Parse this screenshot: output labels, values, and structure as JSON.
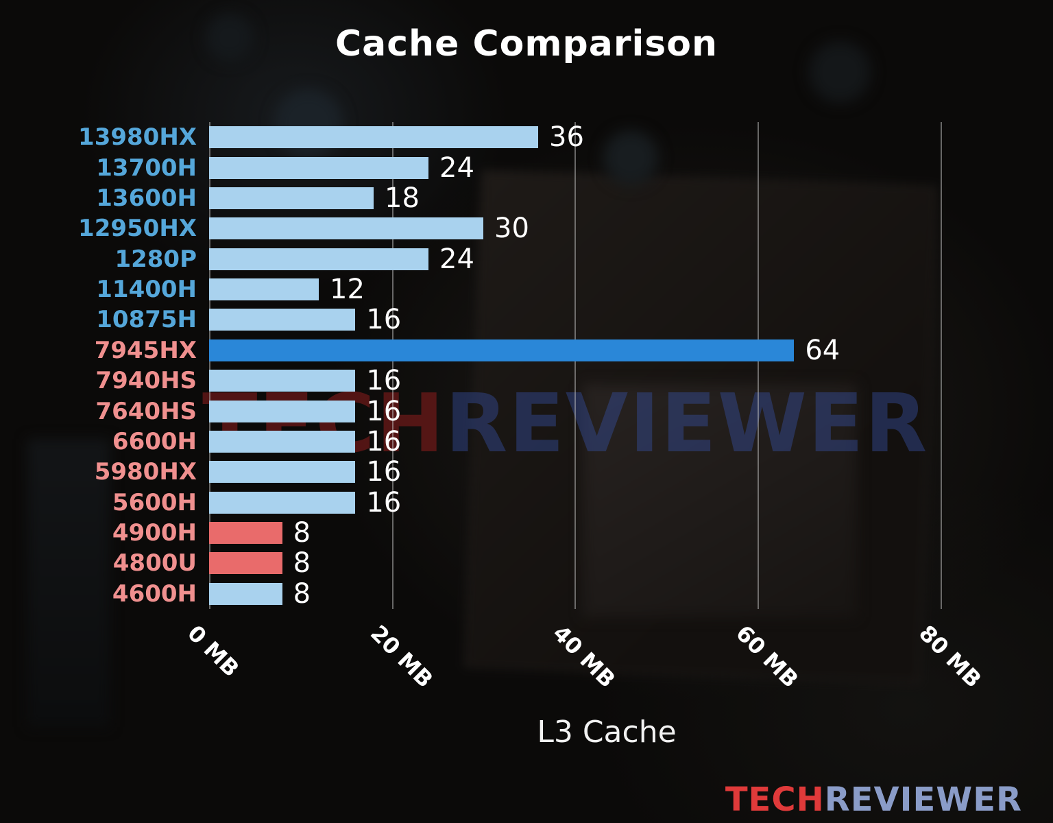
{
  "watermark": {
    "part1": "TECH",
    "part2": "REVIEWER"
  },
  "logo": {
    "part1": "TECH",
    "part2": "REVIEWER"
  },
  "colors": {
    "intel_label": "#55a7da",
    "amd_label": "#f0908f",
    "bar_light_blue": "#a9d2ee",
    "bar_highlight_blue": "#2a87d8",
    "bar_red": "#e96b6b",
    "value_text": "#ffffff",
    "grid": "#c3c3c3"
  },
  "chart_data": {
    "type": "bar",
    "orientation": "horizontal",
    "title": "Cache Comparison",
    "xlabel": "L3 Cache",
    "unit": "MB",
    "xlim": [
      0,
      87
    ],
    "grid": true,
    "xticks": [
      {
        "value": 0,
        "label": "0 MB"
      },
      {
        "value": 20,
        "label": "20 MB"
      },
      {
        "value": 40,
        "label": "40 MB"
      },
      {
        "value": 60,
        "label": "60 MB"
      },
      {
        "value": 80,
        "label": "80 MB"
      }
    ],
    "bars": [
      {
        "label": "13980HX",
        "value": 36,
        "brand": "intel",
        "label_color": "#55a7da",
        "bar_color": "#a9d2ee"
      },
      {
        "label": "13700H",
        "value": 24,
        "brand": "intel",
        "label_color": "#55a7da",
        "bar_color": "#a9d2ee"
      },
      {
        "label": "13600H",
        "value": 18,
        "brand": "intel",
        "label_color": "#55a7da",
        "bar_color": "#a9d2ee"
      },
      {
        "label": "12950HX",
        "value": 30,
        "brand": "intel",
        "label_color": "#55a7da",
        "bar_color": "#a9d2ee"
      },
      {
        "label": "1280P",
        "value": 24,
        "brand": "intel",
        "label_color": "#55a7da",
        "bar_color": "#a9d2ee"
      },
      {
        "label": "11400H",
        "value": 12,
        "brand": "intel",
        "label_color": "#55a7da",
        "bar_color": "#a9d2ee"
      },
      {
        "label": "10875H",
        "value": 16,
        "brand": "intel",
        "label_color": "#55a7da",
        "bar_color": "#a9d2ee"
      },
      {
        "label": "7945HX",
        "value": 64,
        "brand": "amd",
        "label_color": "#f0908f",
        "bar_color": "#2a87d8"
      },
      {
        "label": "7940HS",
        "value": 16,
        "brand": "amd",
        "label_color": "#f0908f",
        "bar_color": "#a9d2ee"
      },
      {
        "label": "7640HS",
        "value": 16,
        "brand": "amd",
        "label_color": "#f0908f",
        "bar_color": "#a9d2ee"
      },
      {
        "label": "6600H",
        "value": 16,
        "brand": "amd",
        "label_color": "#f0908f",
        "bar_color": "#a9d2ee"
      },
      {
        "label": "5980HX",
        "value": 16,
        "brand": "amd",
        "label_color": "#f0908f",
        "bar_color": "#a9d2ee"
      },
      {
        "label": "5600H",
        "value": 16,
        "brand": "amd",
        "label_color": "#f0908f",
        "bar_color": "#a9d2ee"
      },
      {
        "label": "4900H",
        "value": 8,
        "brand": "amd",
        "label_color": "#f0908f",
        "bar_color": "#e96b6b"
      },
      {
        "label": "4800U",
        "value": 8,
        "brand": "amd",
        "label_color": "#f0908f",
        "bar_color": "#e96b6b"
      },
      {
        "label": "4600H",
        "value": 8,
        "brand": "amd",
        "label_color": "#f0908f",
        "bar_color": "#a9d2ee"
      }
    ]
  }
}
